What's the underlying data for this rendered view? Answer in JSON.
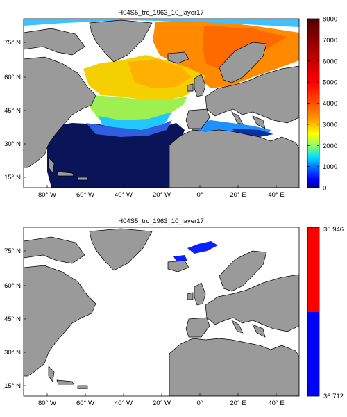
{
  "panels": [
    {
      "title": "H04S5_trc_1963_10_layer17",
      "lat_ticks": [
        "75° N",
        "60° N",
        "45° N",
        "30° N",
        "15° N"
      ],
      "lon_ticks": [
        "80° W",
        "60° W",
        "40° W",
        "20° W",
        "0°",
        "20° E",
        "40° E"
      ],
      "colorbar": {
        "type": "continuous",
        "colormap": "jet",
        "ticks": [
          "0",
          "1000",
          "2000",
          "3000",
          "4000",
          "5000",
          "6000",
          "7000",
          "8000"
        ]
      }
    },
    {
      "title": "H04S5_trc_1963_10_layer17",
      "lat_ticks": [
        "75° N",
        "60° N",
        "45° N",
        "30° N",
        "15° N"
      ],
      "lon_ticks": [
        "80° W",
        "60° W",
        "40° W",
        "20° W",
        "0°",
        "20° E",
        "40° E"
      ],
      "colorbar": {
        "type": "two-class",
        "colors": [
          "#ff0000",
          "#0000ff"
        ],
        "ticks": [
          "36.946",
          "36.712"
        ]
      }
    }
  ],
  "colors": {
    "land": "#9a9a9a",
    "ocean_nodata": "#ffffff",
    "coast": "#000000"
  }
}
